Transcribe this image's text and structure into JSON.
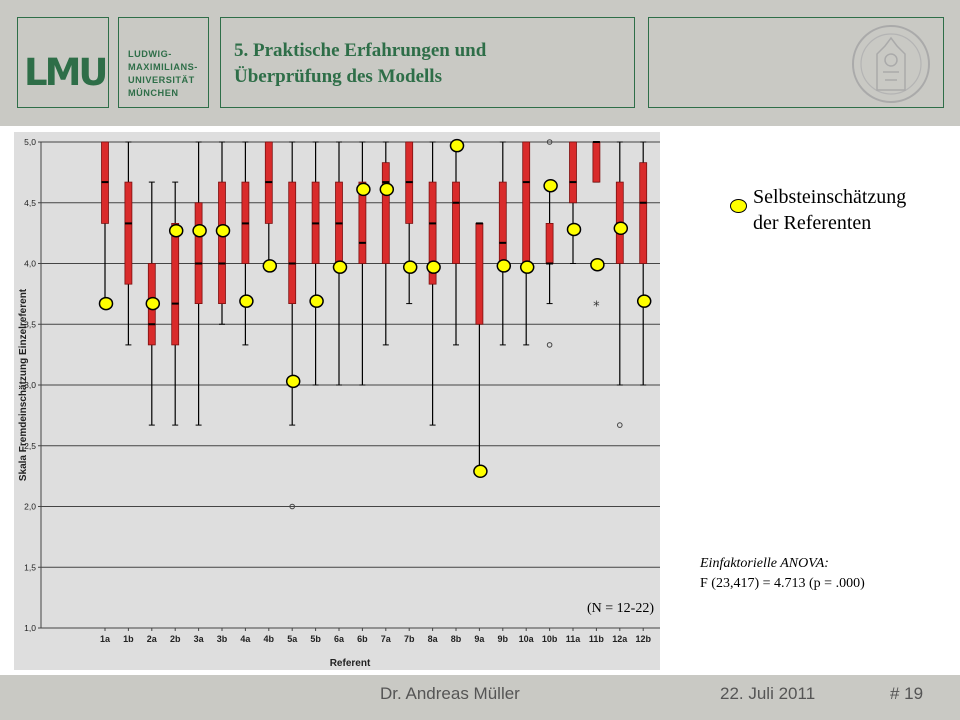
{
  "header": {
    "logo_text": "LMU",
    "university_name": "LUDWIG-\nMAXIMILIANS-\nUNIVERSITÄT\nMÜNCHEN",
    "title": "5. Praktische Erfahrungen und\nÜberprüfung des Modells"
  },
  "legend": {
    "label": "Selbsteinschätzung\nder Referenten",
    "marker_color": "#ffff00"
  },
  "anova": {
    "title": "Einfaktorielle ANOVA:",
    "stat": "F (23,417) = 4.713 (p = .000)"
  },
  "footer": {
    "author": "Dr. Andreas Müller",
    "date": "22. Juli 2011",
    "page": "# 19"
  },
  "colors": {
    "brand_green": "#2e6e48",
    "box_fill": "#d92b2b",
    "panel_bg": "#dedede",
    "header_bg": "#c9c9c4"
  },
  "chart_data": {
    "type": "boxplot",
    "xlabel": "Referent",
    "ylabel": "Skala Fremdeinschätzung Einzelreferent",
    "ylim": [
      1.0,
      5.0
    ],
    "yticks": [
      "1,0",
      "1,5",
      "2,0",
      "2,5",
      "3,0",
      "3,5",
      "4,0",
      "4,5",
      "5,0"
    ],
    "grid": true,
    "annotation": "(N = 12-22)",
    "categories": [
      "1a",
      "1b",
      "2a",
      "2b",
      "3a",
      "3b",
      "4a",
      "4b",
      "5a",
      "5b",
      "6a",
      "6b",
      "7a",
      "7b",
      "8a",
      "8b",
      "9a",
      "9b",
      "10a",
      "10b",
      "11a",
      "11b",
      "12a",
      "12b"
    ],
    "boxes": [
      {
        "min": 3.67,
        "q1": 4.33,
        "median": 4.67,
        "q3": 5.0,
        "max": 5.0
      },
      {
        "min": 3.33,
        "q1": 3.83,
        "median": 4.33,
        "q3": 4.67,
        "max": 5.0
      },
      {
        "min": 2.67,
        "q1": 3.33,
        "median": 3.5,
        "q3": 4.0,
        "max": 4.67
      },
      {
        "min": 2.67,
        "q1": 3.33,
        "median": 3.67,
        "q3": 4.33,
        "max": 4.67
      },
      {
        "min": 2.67,
        "q1": 3.67,
        "median": 4.0,
        "q3": 4.5,
        "max": 5.0
      },
      {
        "min": 3.5,
        "q1": 3.67,
        "median": 4.0,
        "q3": 4.67,
        "max": 5.0
      },
      {
        "min": 3.33,
        "q1": 4.0,
        "median": 4.33,
        "q3": 4.67,
        "max": 5.0
      },
      {
        "min": 4.0,
        "q1": 4.33,
        "median": 4.67,
        "q3": 5.0,
        "max": 5.0
      },
      {
        "min": 2.67,
        "q1": 3.67,
        "median": 4.0,
        "q3": 4.67,
        "max": 5.0
      },
      {
        "min": 3.0,
        "q1": 4.0,
        "median": 4.33,
        "q3": 4.67,
        "max": 5.0
      },
      {
        "min": 3.0,
        "q1": 4.0,
        "median": 4.33,
        "q3": 4.67,
        "max": 5.0
      },
      {
        "min": 3.0,
        "q1": 4.0,
        "median": 4.17,
        "q3": 4.67,
        "max": 5.0
      },
      {
        "min": 3.33,
        "q1": 4.0,
        "median": 4.67,
        "q3": 4.83,
        "max": 5.0
      },
      {
        "min": 3.67,
        "q1": 4.33,
        "median": 4.67,
        "q3": 5.0,
        "max": 5.0
      },
      {
        "min": 2.67,
        "q1": 3.83,
        "median": 4.33,
        "q3": 4.67,
        "max": 5.0
      },
      {
        "min": 3.33,
        "q1": 4.0,
        "median": 4.5,
        "q3": 4.67,
        "max": 5.0
      },
      {
        "min": 2.33,
        "q1": 3.5,
        "median": 4.33,
        "q3": 4.33,
        "max": 4.33
      },
      {
        "min": 3.33,
        "q1": 4.0,
        "median": 4.17,
        "q3": 4.67,
        "max": 5.0
      },
      {
        "min": 3.33,
        "q1": 4.0,
        "median": 4.67,
        "q3": 5.0,
        "max": 5.0
      },
      {
        "min": 3.67,
        "q1": 4.0,
        "median": 4.0,
        "q3": 4.33,
        "max": 4.67
      },
      {
        "min": 4.0,
        "q1": 4.5,
        "median": 4.67,
        "q3": 5.0,
        "max": 5.0
      },
      {
        "min": 4.67,
        "q1": 4.67,
        "median": 5.0,
        "q3": 5.0,
        "max": 5.0
      },
      {
        "min": 3.0,
        "q1": 4.0,
        "median": 4.33,
        "q3": 4.67,
        "max": 5.0
      },
      {
        "min": 3.0,
        "q1": 4.0,
        "median": 4.5,
        "q3": 4.83,
        "max": 5.0
      }
    ],
    "outliers": [
      {
        "category": "5a",
        "value": 2.0,
        "marker": "circle"
      },
      {
        "category": "10b",
        "value": 5.0,
        "marker": "circle"
      },
      {
        "category": "10b",
        "value": 3.33,
        "marker": "circle"
      },
      {
        "category": "11b",
        "value": 3.67,
        "marker": "star"
      },
      {
        "category": "12a",
        "value": 2.67,
        "marker": "circle"
      }
    ],
    "self_assessment": [
      3.67,
      null,
      3.67,
      4.27,
      4.27,
      4.27,
      3.69,
      3.98,
      3.03,
      3.69,
      3.97,
      4.61,
      4.61,
      3.97,
      3.97,
      4.97,
      2.29,
      3.98,
      3.97,
      4.64,
      4.28,
      3.99,
      4.29,
      3.69
    ]
  }
}
